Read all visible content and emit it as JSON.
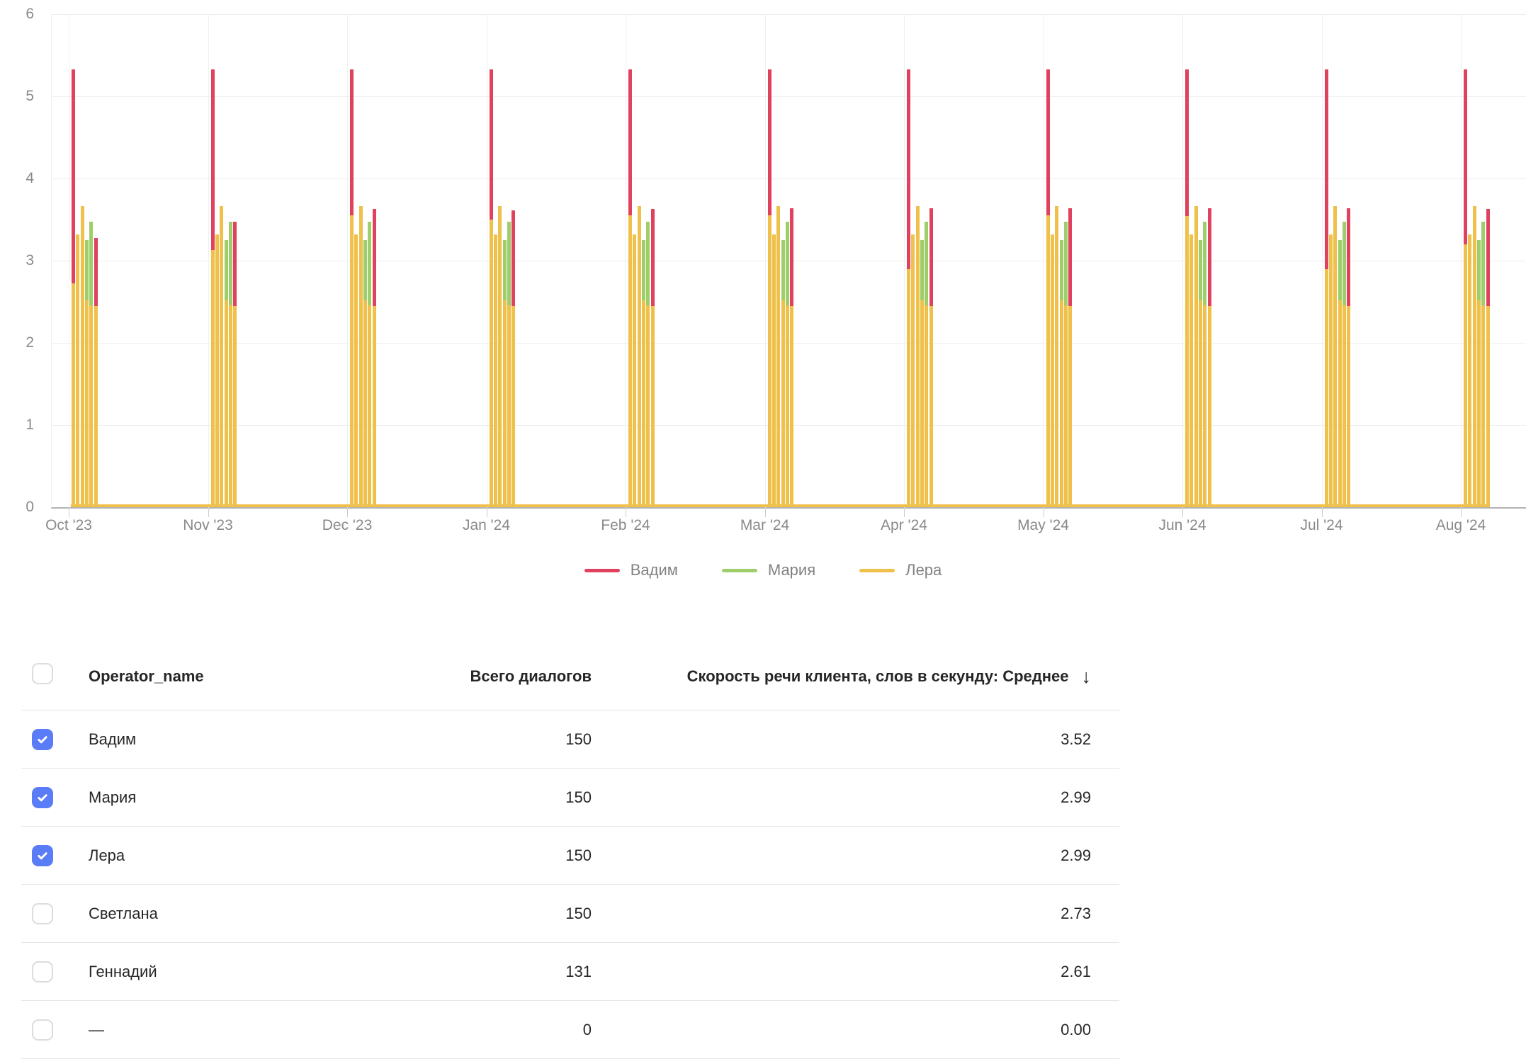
{
  "colors": {
    "red": "#e0415e",
    "green": "#9ece6a",
    "yellow": "#efc04a",
    "checkbox_blue": "#5b7cf7",
    "axis_text": "#8a8a8a",
    "legend_text": "#828282",
    "grid_line": "#ededed",
    "axis_line": "#b3b3b3",
    "table_text": "#262626",
    "separator": "#e6e6e6"
  },
  "chart": {
    "y_axis_labels": [
      "6",
      "5",
      "4",
      "3",
      "2",
      "1",
      "0"
    ],
    "x_axis_labels": [
      "Oct '23",
      "Nov '23",
      "Dec '23",
      "Jan '24",
      "Feb '24",
      "Mar '24",
      "Apr '24",
      "May '24",
      "Jun '24",
      "Jul '24",
      "Aug '24"
    ],
    "legend": [
      {
        "name": "Вадим",
        "color": "#e0415e"
      },
      {
        "name": "Мария",
        "color": "#9ece6a"
      },
      {
        "name": "Лера",
        "color": "#efc04a"
      }
    ]
  },
  "chart_data": {
    "type": "bar",
    "title": "",
    "xlabel": "",
    "ylabel": "",
    "x": [
      "Oct '23",
      "Nov '23",
      "Dec '23",
      "Jan '24",
      "Feb '24",
      "Mar '24",
      "Apr '24",
      "May '24",
      "Jun '24",
      "Jul '24",
      "Aug '24"
    ],
    "ylim": [
      0,
      6
    ],
    "y_ticks": [
      0,
      1,
      2,
      3,
      4,
      5,
      6
    ],
    "grid": true,
    "legend_position": "bottom",
    "series": [
      {
        "key": "v",
        "name": "Вадим",
        "color": "#e0415e"
      },
      {
        "key": "m",
        "name": "Мария",
        "color": "#9ece6a"
      },
      {
        "key": "l",
        "name": "Лера",
        "color": "#efc04a"
      }
    ],
    "baseline": {
      "series": "l",
      "value": 0.03,
      "note": "thin yellow strip along y=0 across the whole axis"
    },
    "bars_note": "each bar = [seriesKey, topValue, yellowOverlayTop]; yellow overlay covers bar from 0 up to overlay value",
    "groups": [
      {
        "month": "Oct '23",
        "bars": [
          [
            "v",
            5.33,
            2.72
          ],
          [
            "l",
            3.32,
            0
          ],
          [
            "l",
            3.66,
            0
          ],
          [
            "m",
            3.25,
            2.52
          ],
          [
            "m",
            3.47,
            2.46
          ],
          [
            "v",
            3.28,
            2.45
          ]
        ]
      },
      {
        "month": "Nov '23",
        "bars": [
          [
            "v",
            5.33,
            3.13
          ],
          [
            "l",
            3.32,
            0
          ],
          [
            "l",
            3.66,
            0
          ],
          [
            "m",
            3.25,
            2.52
          ],
          [
            "m",
            3.47,
            2.46
          ],
          [
            "v",
            3.47,
            2.45
          ]
        ]
      },
      {
        "month": "Dec '23",
        "bars": [
          [
            "v",
            5.33,
            3.55
          ],
          [
            "l",
            3.32,
            0
          ],
          [
            "l",
            3.66,
            0
          ],
          [
            "m",
            3.25,
            2.52
          ],
          [
            "m",
            3.47,
            2.46
          ],
          [
            "v",
            3.63,
            2.45
          ]
        ]
      },
      {
        "month": "Jan '24",
        "bars": [
          [
            "v",
            5.33,
            3.5
          ],
          [
            "l",
            3.32,
            0
          ],
          [
            "l",
            3.66,
            0
          ],
          [
            "m",
            3.25,
            2.52
          ],
          [
            "m",
            3.47,
            2.46
          ],
          [
            "v",
            3.61,
            2.45
          ]
        ]
      },
      {
        "month": "Feb '24",
        "bars": [
          [
            "v",
            5.33,
            3.55
          ],
          [
            "l",
            3.32,
            0
          ],
          [
            "l",
            3.66,
            0
          ],
          [
            "m",
            3.25,
            2.52
          ],
          [
            "m",
            3.47,
            2.46
          ],
          [
            "v",
            3.63,
            2.45
          ]
        ]
      },
      {
        "month": "Mar '24",
        "bars": [
          [
            "v",
            5.33,
            3.55
          ],
          [
            "l",
            3.32,
            0
          ],
          [
            "l",
            3.66,
            0
          ],
          [
            "m",
            3.25,
            2.52
          ],
          [
            "m",
            3.47,
            2.46
          ],
          [
            "v",
            3.64,
            2.45
          ]
        ]
      },
      {
        "month": "Apr '24",
        "bars": [
          [
            "v",
            5.33,
            2.9
          ],
          [
            "l",
            3.32,
            0
          ],
          [
            "l",
            3.66,
            0
          ],
          [
            "m",
            3.25,
            2.52
          ],
          [
            "m",
            3.47,
            2.46
          ],
          [
            "v",
            3.64,
            2.45
          ]
        ]
      },
      {
        "month": "May '24",
        "bars": [
          [
            "v",
            5.33,
            3.55
          ],
          [
            "l",
            3.32,
            0
          ],
          [
            "l",
            3.66,
            0
          ],
          [
            "m",
            3.25,
            2.52
          ],
          [
            "m",
            3.47,
            2.46
          ],
          [
            "v",
            3.64,
            2.45
          ]
        ]
      },
      {
        "month": "Jun '24",
        "bars": [
          [
            "v",
            5.33,
            3.54
          ],
          [
            "l",
            3.32,
            0
          ],
          [
            "l",
            3.66,
            0
          ],
          [
            "m",
            3.25,
            2.52
          ],
          [
            "m",
            3.47,
            2.46
          ],
          [
            "v",
            3.64,
            2.45
          ]
        ]
      },
      {
        "month": "Jul '24",
        "bars": [
          [
            "v",
            5.33,
            2.9
          ],
          [
            "l",
            3.32,
            0
          ],
          [
            "l",
            3.66,
            0
          ],
          [
            "m",
            3.25,
            2.52
          ],
          [
            "m",
            3.47,
            2.46
          ],
          [
            "v",
            3.64,
            2.45
          ]
        ]
      },
      {
        "month": "Aug '24",
        "bars": [
          [
            "v",
            5.33,
            3.2
          ],
          [
            "l",
            3.32,
            0
          ],
          [
            "l",
            3.66,
            0
          ],
          [
            "m",
            3.25,
            2.52
          ],
          [
            "m",
            3.47,
            2.46
          ],
          [
            "v",
            3.63,
            2.45
          ]
        ]
      }
    ]
  },
  "table": {
    "header": {
      "name": "Operator_name",
      "dialogs": "Всего диалогов",
      "speed": "Скорость речи клиента, слов в секунду: Среднее",
      "sort_icon": "↓"
    },
    "rows": [
      {
        "checked": true,
        "name": "Вадим",
        "dialogs": "150",
        "speed": "3.52"
      },
      {
        "checked": true,
        "name": "Мария",
        "dialogs": "150",
        "speed": "2.99"
      },
      {
        "checked": true,
        "name": "Лера",
        "dialogs": "150",
        "speed": "2.99"
      },
      {
        "checked": false,
        "name": "Светлана",
        "dialogs": "150",
        "speed": "2.73"
      },
      {
        "checked": false,
        "name": "Геннадий",
        "dialogs": "131",
        "speed": "2.61"
      },
      {
        "checked": false,
        "name": "—",
        "dialogs": "0",
        "speed": "0.00"
      }
    ]
  }
}
